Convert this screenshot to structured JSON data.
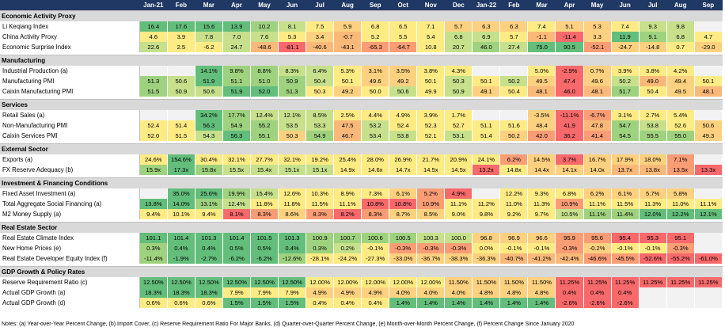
{
  "columns": [
    "Jan-21",
    "Feb",
    "Mar",
    "Apr",
    "May",
    "Jun",
    "Jul",
    "Aug",
    "Sep",
    "Oct",
    "Nov",
    "Dec",
    "Jan-22",
    "Feb",
    "Mar",
    "Apr",
    "May",
    "Jun",
    "Jul",
    "Aug",
    "Sep"
  ],
  "colors": {
    "dark_green": "#63be7b",
    "green": "#9fd27e",
    "light_green": "#c6e08c",
    "yellow": "#ffeb84",
    "light_orange": "#fdd17f",
    "orange": "#fbb979",
    "light_red": "#fa9d75",
    "red": "#f8696b",
    "grey": "#f2f2f2"
  },
  "sections": [
    {
      "title": "Economic Activity Proxy",
      "rows": [
        {
          "label": "Li Keqiang Index",
          "values": [
            "16.4",
            "17.6",
            "15.6",
            "13.9",
            "10.2",
            "8.1",
            "7.5",
            "5.9",
            "6.8",
            "6.5",
            "7.1",
            "5.7",
            "6.3",
            "6.3",
            "7.4",
            "5.1",
            "5.3",
            "7.4",
            "9.3",
            "9.8",
            ""
          ],
          "tones": [
            "dg",
            "dg",
            "dg",
            "dg",
            "g",
            "lg",
            "y",
            "lo",
            "y",
            "y",
            "y",
            "lo",
            "lo",
            "lo",
            "y",
            "lo",
            "lo",
            "y",
            "lg",
            "lg",
            "n"
          ]
        },
        {
          "label": "China Activity Proxy",
          "values": [
            "4.6",
            "3.9",
            "7.8",
            "7.0",
            "7.6",
            "5.3",
            "3.4",
            "-0.7",
            "5.2",
            "5.5",
            "5.4",
            "6.8",
            "6.9",
            "5.7",
            "-1.1",
            "-11.4",
            "3.3",
            "11.9",
            "9.1",
            "6.8",
            "4.7"
          ],
          "tones": [
            "y",
            "y",
            "lg",
            "lg",
            "lg",
            "y",
            "lo",
            "o",
            "y",
            "y",
            "y",
            "lg",
            "lg",
            "y",
            "o",
            "r",
            "lo",
            "dg",
            "g",
            "lg",
            "y"
          ]
        },
        {
          "label": "Economic Surprise Index",
          "values": [
            "22.6",
            "2.5",
            "-6.2",
            "24.7",
            "-48.6",
            "-81.1",
            "-40.6",
            "-43.1",
            "-65.3",
            "-64.7",
            "10.8",
            "20.7",
            "46.0",
            "27.4",
            "75.0",
            "90.5",
            "-52.1",
            "-24.7",
            "-14.8",
            "0.7",
            "-29.0"
          ],
          "tones": [
            "lg",
            "y",
            "y",
            "lg",
            "o",
            "r",
            "o",
            "o",
            "lr",
            "lr",
            "y",
            "lg",
            "g",
            "lg",
            "dg",
            "dg",
            "lr",
            "lo",
            "lo",
            "y",
            "lo"
          ]
        }
      ]
    },
    {
      "title": "Manufacturing",
      "rows": [
        {
          "label": "Industrial Production (a)",
          "values": [
            "",
            "",
            "14.1%",
            "9.8%",
            "8.8%",
            "8.3%",
            "6.4%",
            "5.3%",
            "3.1%",
            "3.5%",
            "3.8%",
            "4.3%",
            "",
            "",
            "5.0%",
            "-2.9%",
            "0.7%",
            "3.9%",
            "3.8%",
            "4.2%",
            ""
          ],
          "tones": [
            "n",
            "n",
            "dg",
            "g",
            "g",
            "lg",
            "lg",
            "y",
            "lo",
            "lo",
            "y",
            "y",
            "n",
            "n",
            "y",
            "r",
            "lo",
            "y",
            "y",
            "y",
            "n"
          ]
        },
        {
          "label": "Manufacturing PMI",
          "values": [
            "51.3",
            "50.6",
            "51.9",
            "51.1",
            "51.0",
            "50.9",
            "50.4",
            "50.1",
            "49.6",
            "49.2",
            "50.1",
            "50.3",
            "50.1",
            "50.2",
            "49.5",
            "47.4",
            "49.6",
            "50.2",
            "49.0",
            "49.4",
            "50.1"
          ],
          "tones": [
            "g",
            "lg",
            "dg",
            "g",
            "g",
            "g",
            "lg",
            "y",
            "lo",
            "lo",
            "y",
            "lg",
            "y",
            "lg",
            "lo",
            "r",
            "lo",
            "lg",
            "o",
            "lo",
            "y"
          ]
        },
        {
          "label": "Caixin Manufacturing PMI",
          "values": [
            "51.5",
            "50.9",
            "50.6",
            "51.9",
            "52.0",
            "51.3",
            "50.3",
            "49.2",
            "50.0",
            "50.6",
            "49.9",
            "50.9",
            "49.1",
            "50.4",
            "48.1",
            "46.0",
            "48.1",
            "51.7",
            "50.4",
            "49.5",
            "48.1"
          ],
          "tones": [
            "g",
            "lg",
            "lg",
            "dg",
            "dg",
            "g",
            "y",
            "lo",
            "y",
            "lg",
            "y",
            "lg",
            "lo",
            "y",
            "o",
            "r",
            "o",
            "g",
            "y",
            "lo",
            "o"
          ]
        }
      ]
    },
    {
      "title": "Services",
      "rows": [
        {
          "label": "Retail Sales (a)",
          "values": [
            "",
            "",
            "34.2%",
            "17.7%",
            "12.4%",
            "12.1%",
            "8.5%",
            "2.5%",
            "4.4%",
            "4.9%",
            "3.9%",
            "1.7%",
            "",
            "",
            "-3.5%",
            "-11.1%",
            "-6.7%",
            "3.1%",
            "2.7%",
            "5.4%",
            ""
          ],
          "tones": [
            "n",
            "n",
            "dg",
            "g",
            "lg",
            "lg",
            "lg",
            "y",
            "y",
            "y",
            "y",
            "y",
            "n",
            "n",
            "lo",
            "r",
            "lr",
            "y",
            "y",
            "y",
            "n"
          ]
        },
        {
          "label": "Non-Manufacturing PMI",
          "values": [
            "52.4",
            "51.4",
            "56.3",
            "54.9",
            "55.2",
            "53.5",
            "53.3",
            "47.5",
            "53.2",
            "52.4",
            "52.3",
            "52.7",
            "51.1",
            "51.6",
            "48.4",
            "41.9",
            "47.8",
            "54.7",
            "53.8",
            "52.6",
            "50.6"
          ],
          "tones": [
            "y",
            "y",
            "dg",
            "g",
            "g",
            "lg",
            "lg",
            "o",
            "lg",
            "y",
            "y",
            "y",
            "y",
            "y",
            "lo",
            "r",
            "o",
            "g",
            "lg",
            "y",
            "lo"
          ]
        },
        {
          "label": "Caixin Services PMI",
          "values": [
            "52.0",
            "51.5",
            "54.3",
            "56.3",
            "55.1",
            "50.3",
            "54.9",
            "46.7",
            "53.4",
            "53.8",
            "52.1",
            "53.1",
            "51.4",
            "50.2",
            "42.0",
            "36.2",
            "41.4",
            "54.5",
            "55.5",
            "55.0",
            "49.3"
          ],
          "tones": [
            "y",
            "y",
            "lg",
            "dg",
            "g",
            "lo",
            "g",
            "o",
            "lg",
            "lg",
            "y",
            "lg",
            "y",
            "lo",
            "lr",
            "r",
            "lr",
            "g",
            "g",
            "g",
            "lo"
          ]
        }
      ]
    },
    {
      "title": "External Sector",
      "rows": [
        {
          "label": "Exports (a)",
          "values": [
            "24.6%",
            "154.6%",
            "30.4%",
            "32.1%",
            "27.7%",
            "32.1%",
            "19.2%",
            "25.4%",
            "28.0%",
            "26.9%",
            "21.7%",
            "20.9%",
            "24.1%",
            "6.2%",
            "14.5%",
            "3.7%",
            "16.7%",
            "17.9%",
            "18.0%",
            "7.1%",
            ""
          ],
          "tones": [
            "y",
            "dg",
            "y",
            "y",
            "y",
            "y",
            "y",
            "y",
            "y",
            "y",
            "y",
            "y",
            "y",
            "lr",
            "lo",
            "r",
            "lo",
            "lo",
            "lo",
            "lr",
            "n"
          ]
        },
        {
          "label": "FX Reserve Adequacy (b)",
          "values": [
            "15.9x",
            "17.3x",
            "15.8x",
            "15.5x",
            "15.4x",
            "15.1x",
            "15.1x",
            "14.9x",
            "14.6x",
            "14.7x",
            "14.5x",
            "14.5x",
            "13.2x",
            "14.8x",
            "14.4x",
            "14.1x",
            "14.0x",
            "13.7x",
            "13.8x",
            "13.5x",
            "13.3x"
          ],
          "tones": [
            "g",
            "dg",
            "g",
            "lg",
            "lg",
            "lg",
            "lg",
            "y",
            "y",
            "y",
            "y",
            "y",
            "r",
            "y",
            "lo",
            "lo",
            "lo",
            "o",
            "o",
            "lr",
            "r"
          ]
        }
      ]
    },
    {
      "title": "Investment & Financing Conditions",
      "rows": [
        {
          "label": "Fixed Asset Investment (a)",
          "values": [
            "",
            "35.0%",
            "25.6%",
            "19.9%",
            "15.4%",
            "12.6%",
            "10.3%",
            "8.9%",
            "7.3%",
            "6.1%",
            "5.2%",
            "4.9%",
            "",
            "12.2%",
            "9.3%",
            "6.8%",
            "6.2%",
            "6.1%",
            "5.7%",
            "5.8%",
            ""
          ],
          "tones": [
            "n",
            "dg",
            "dg",
            "g",
            "lg",
            "y",
            "y",
            "y",
            "y",
            "lo",
            "lr",
            "r",
            "n",
            "y",
            "y",
            "y",
            "lo",
            "lo",
            "lo",
            "lo",
            "n"
          ]
        },
        {
          "label": "Total Aggregate Social Financing (a)",
          "values": [
            "13.8%",
            "14.0%",
            "13.1%",
            "12.4%",
            "11.8%",
            "11.8%",
            "11.5%",
            "11.1%",
            "10.8%",
            "10.8%",
            "10.9%",
            "11.1%",
            "11.2%",
            "11.0%",
            "11.3%",
            "10.9%",
            "11.1%",
            "11.5%",
            "11.3%",
            "11.0%",
            "11.1%"
          ],
          "tones": [
            "dg",
            "dg",
            "g",
            "lg",
            "y",
            "y",
            "y",
            "y",
            "r",
            "r",
            "lr",
            "y",
            "y",
            "y",
            "y",
            "lr",
            "y",
            "y",
            "y",
            "y",
            "y"
          ]
        },
        {
          "label": "M2 Money Supply (a)",
          "values": [
            "9.4%",
            "10.1%",
            "9.4%",
            "8.1%",
            "8.3%",
            "8.6%",
            "8.3%",
            "8.2%",
            "8.3%",
            "8.7%",
            "8.5%",
            "9.0%",
            "9.8%",
            "9.2%",
            "9.7%",
            "10.5%",
            "11.1%",
            "11.4%",
            "12.0%",
            "12.2%",
            "12.1%"
          ],
          "tones": [
            "y",
            "y",
            "y",
            "r",
            "lr",
            "lo",
            "lr",
            "r",
            "lr",
            "lo",
            "lo",
            "y",
            "y",
            "y",
            "y",
            "lg",
            "g",
            "g",
            "dg",
            "dg",
            "dg"
          ]
        }
      ]
    },
    {
      "title": "Real Estate Sector",
      "rows": [
        {
          "label": "Real Estate Climate Index",
          "values": [
            "101.1",
            "101.4",
            "101.3",
            "101.4",
            "101.5",
            "101.3",
            "100.9",
            "100.7",
            "100.6",
            "100.5",
            "100.3",
            "100.0",
            "96.8",
            "96.9",
            "96.6",
            "95.9",
            "95.6",
            "95.4",
            "95.3",
            "95.1",
            ""
          ],
          "tones": [
            "dg",
            "dg",
            "dg",
            "dg",
            "dg",
            "dg",
            "g",
            "g",
            "g",
            "g",
            "lg",
            "lg",
            "lo",
            "lo",
            "lo",
            "lr",
            "lr",
            "r",
            "r",
            "r",
            "n"
          ]
        },
        {
          "label": "New Home Prices (e)",
          "values": [
            "0.3%",
            "0.4%",
            "0.4%",
            "0.5%",
            "0.5%",
            "0.4%",
            "0.3%",
            "0.2%",
            "-0.1%",
            "-0.3%",
            "-0.3%",
            "-0.3%",
            "0.0%",
            "-0.1%",
            "-0.1%",
            "-0.3%",
            "-0.2%",
            "-0.1%",
            "-0.1%",
            "-0.3%",
            ""
          ],
          "tones": [
            "g",
            "dg",
            "dg",
            "dg",
            "dg",
            "dg",
            "g",
            "lg",
            "y",
            "lr",
            "lr",
            "lr",
            "y",
            "y",
            "y",
            "lr",
            "lo",
            "y",
            "y",
            "lr",
            "n"
          ]
        },
        {
          "label": "Real Estate Developer Equity Index (f)",
          "values": [
            "-11.4%",
            "-1.9%",
            "-2.7%",
            "-6.2%",
            "-6.2%",
            "-12.6%",
            "-28.1%",
            "-24.2%",
            "-27.3%",
            "-33.0%",
            "-36.7%",
            "-38.3%",
            "-36.3%",
            "-40.7%",
            "-41.2%",
            "-42.4%",
            "-46.6%",
            "-45.5%",
            "-52.6%",
            "-55.2%",
            "-61.0%"
          ],
          "tones": [
            "g",
            "dg",
            "dg",
            "dg",
            "dg",
            "g",
            "y",
            "y",
            "y",
            "lo",
            "lo",
            "lo",
            "lo",
            "o",
            "o",
            "o",
            "lr",
            "lr",
            "r",
            "r",
            "r"
          ]
        }
      ]
    },
    {
      "title": "GDP Growth & Policy Rates",
      "rows": [
        {
          "label": "Reserve Requirement Ratio (c)",
          "values": [
            "12.50%",
            "12.50%",
            "12.50%",
            "12.50%",
            "12.50%",
            "12.50%",
            "12.00%",
            "12.00%",
            "12.00%",
            "12.00%",
            "12.00%",
            "11.50%",
            "11.50%",
            "11.50%",
            "11.50%",
            "11.25%",
            "11.25%",
            "11.25%",
            "11.25%",
            "11.25%",
            "11.25%"
          ],
          "tones": [
            "dg",
            "dg",
            "dg",
            "dg",
            "dg",
            "dg",
            "y",
            "y",
            "y",
            "y",
            "y",
            "lo",
            "lo",
            "lo",
            "lo",
            "r",
            "r",
            "r",
            "r",
            "r",
            "r"
          ]
        },
        {
          "label": "Actual GDP Growth (a)",
          "values": [
            "18.3%",
            "18.3%",
            "18.3%",
            "7.9%",
            "7.9%",
            "7.9%",
            "4.9%",
            "4.9%",
            "4.9%",
            "4.0%",
            "4.0%",
            "4.0%",
            "4.8%",
            "4.8%",
            "4.8%",
            "0.4%",
            "0.4%",
            "0.4%",
            "",
            "",
            ""
          ],
          "tones": [
            "dg",
            "dg",
            "dg",
            "y",
            "y",
            "y",
            "lo",
            "lo",
            "lo",
            "lo",
            "lo",
            "lo",
            "lo",
            "lo",
            "lo",
            "r",
            "r",
            "r",
            "n",
            "n",
            "n"
          ]
        },
        {
          "label": "Actual GDP Growth (d)",
          "values": [
            "0.6%",
            "0.6%",
            "0.6%",
            "1.5%",
            "1.5%",
            "1.5%",
            "0.4%",
            "0.4%",
            "0.4%",
            "1.4%",
            "1.4%",
            "1.4%",
            "1.4%",
            "1.4%",
            "1.4%",
            "-2.6%",
            "-2.6%",
            "-2.6%",
            "",
            "",
            ""
          ],
          "tones": [
            "y",
            "y",
            "y",
            "dg",
            "dg",
            "dg",
            "y",
            "y",
            "y",
            "dg",
            "dg",
            "dg",
            "dg",
            "dg",
            "dg",
            "r",
            "r",
            "r",
            "n",
            "n",
            "n"
          ]
        }
      ]
    }
  ],
  "notes": "Notes: (a) Year-over-Year Percent Change, (b) Import Cover, (c) Reserve Requirement Ratio For Major Banks, (d) Quarter-over-Quarter Percent Change, (e) Month-over-Month Percent Change, (f) Percent Change Since January 2020"
}
